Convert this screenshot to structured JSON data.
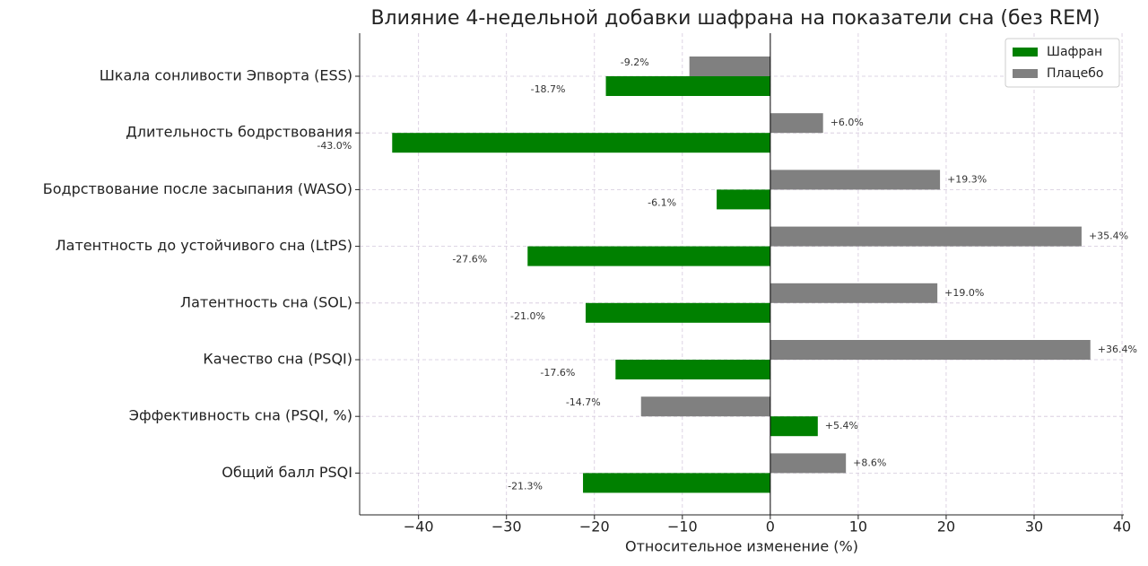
{
  "chart_data": {
    "type": "barh",
    "title": "Влияние 4-недельной добавки шафрана на показатели сна (без REM)",
    "x_label": "Относительное изменение (%)",
    "categories": [
      "Шкала сонливости Эпворта (ESS)",
      "Длительность бодрствования",
      "Бодрствование после засыпания (WASO)",
      "Латентность до устойчивого сна (LtPS)",
      "Латентность сна (SOL)",
      "Качество сна (PSQI)",
      "Эффективность сна (PSQI, %)",
      "Общий балл PSQI"
    ],
    "series": [
      {
        "name": "Шафран",
        "color": "#008000",
        "values": [
          -18.7,
          -43.0,
          -6.1,
          -27.6,
          -21.0,
          -17.6,
          5.4,
          -21.3
        ],
        "value_labels": [
          "-18.7%",
          "-43.0%",
          "-6.1%",
          "-27.6%",
          "-21.0%",
          "-17.6%",
          "+5.4%",
          "-21.3%"
        ]
      },
      {
        "name": "Плацебо",
        "color": "#808080",
        "values": [
          -9.2,
          6.0,
          19.3,
          35.4,
          19.0,
          36.4,
          -14.7,
          8.6
        ],
        "value_labels": [
          "-9.2%",
          "+6.0%",
          "+19.3%",
          "+35.4%",
          "+19.0%",
          "+36.4%",
          "-14.7%",
          "+8.6%"
        ]
      }
    ],
    "xlim": [
      -46.7,
      40.2
    ],
    "xticks": [
      {
        "value": -40,
        "label": "−40"
      },
      {
        "value": -30,
        "label": "−30"
      },
      {
        "value": -20,
        "label": "−20"
      },
      {
        "value": -10,
        "label": "−10"
      },
      0,
      10,
      20,
      30,
      40
    ],
    "grid": true,
    "legend": "upper right"
  }
}
